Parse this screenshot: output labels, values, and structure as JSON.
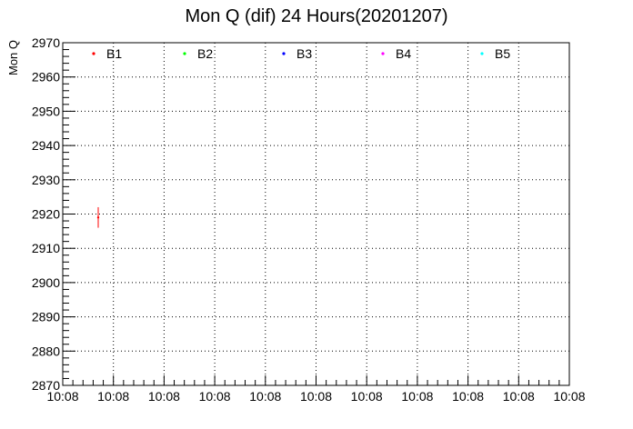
{
  "chart_data": {
    "type": "scatter",
    "title": "Mon Q (dif) 24 Hours(20201207)",
    "ylabel": "Mon Q",
    "xlabel": "",
    "ylim": [
      2870,
      2970
    ],
    "y_ticks": [
      "2870",
      "2880",
      "2890",
      "2900",
      "2910",
      "2920",
      "2930",
      "2940",
      "2950",
      "2960",
      "2970"
    ],
    "x_ticks": [
      "10:08",
      "10:08",
      "10:08",
      "10:08",
      "10:08",
      "10:08",
      "10:08",
      "10:08",
      "10:08",
      "10:08",
      "10:08"
    ],
    "grid": true,
    "legend_position": "top",
    "series": [
      {
        "name": "B1",
        "color": "#ff0000",
        "points": [
          {
            "x_index": 0.7,
            "y": 2919,
            "y_err": 3
          }
        ]
      },
      {
        "name": "B2",
        "color": "#00ff00",
        "points": []
      },
      {
        "name": "B3",
        "color": "#0000ff",
        "points": []
      },
      {
        "name": "B4",
        "color": "#ff00ff",
        "points": []
      },
      {
        "name": "B5",
        "color": "#00ffff",
        "points": []
      }
    ]
  }
}
